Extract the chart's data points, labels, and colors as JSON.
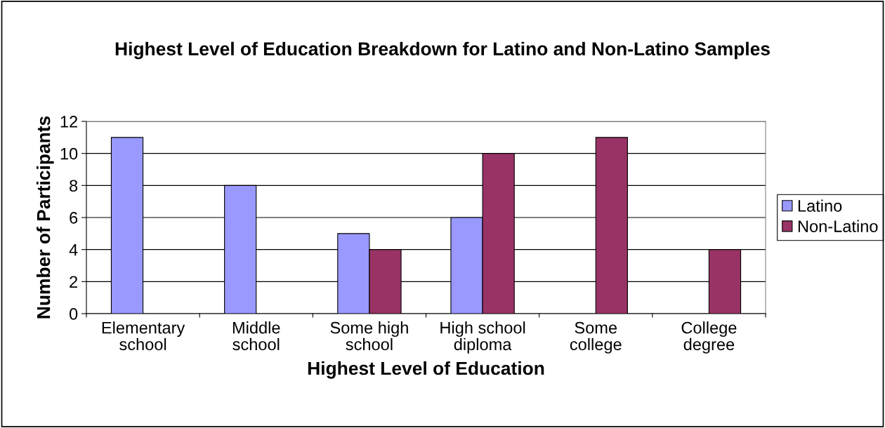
{
  "chart_data": {
    "type": "bar",
    "title": "Highest Level of Education Breakdown for Latino and Non-Latino Samples",
    "xlabel": "Highest Level of Education",
    "ylabel": "Number of Participants",
    "categories": [
      "Elementary\nschool",
      "Middle\nschool",
      "Some high\nschool",
      "High school\ndiploma",
      "Some\ncollege",
      "College\ndegree"
    ],
    "series": [
      {
        "name": "Latino",
        "color": "#9999ff",
        "values": [
          11,
          8,
          5,
          6,
          null,
          null
        ]
      },
      {
        "name": "Non-Latino",
        "color": "#993366",
        "values": [
          null,
          null,
          4,
          10,
          11,
          4
        ]
      }
    ],
    "ylim": [
      0,
      12
    ],
    "yticks": [
      0,
      2,
      4,
      6,
      8,
      10,
      12
    ],
    "grid": "y",
    "legend": "right"
  }
}
